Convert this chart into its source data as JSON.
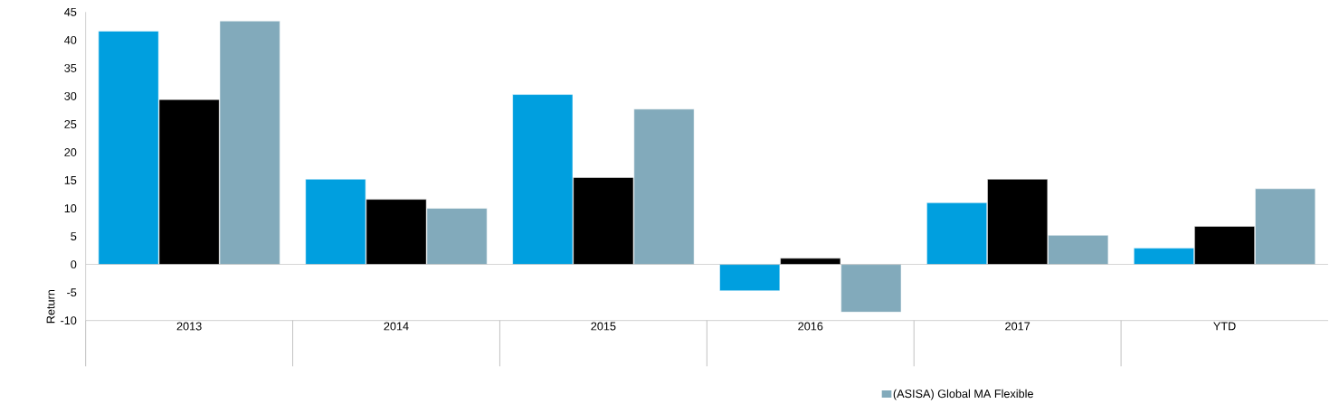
{
  "chart_data": {
    "type": "bar",
    "ylabel": "Return",
    "categories": [
      "2013",
      "2014",
      "2015",
      "2016",
      "2017",
      "YTD"
    ],
    "series": [
      {
        "color": "#009fdf",
        "values": [
          41.6,
          15.2,
          30.3,
          -4.7,
          11.0,
          2.9
        ]
      },
      {
        "color": "#000000",
        "values": [
          29.4,
          11.6,
          15.5,
          1.1,
          15.2,
          6.8
        ]
      },
      {
        "name": "(ASISA) Global MA Flexible",
        "color": "#82aabb",
        "values": [
          43.4,
          10.0,
          27.7,
          -8.5,
          5.2,
          13.5
        ]
      }
    ],
    "ylim": [
      -10,
      45
    ],
    "yticks": [
      -10,
      -5,
      0,
      5,
      10,
      15,
      20,
      25,
      30,
      35,
      40,
      45
    ],
    "legend": "bottom"
  }
}
